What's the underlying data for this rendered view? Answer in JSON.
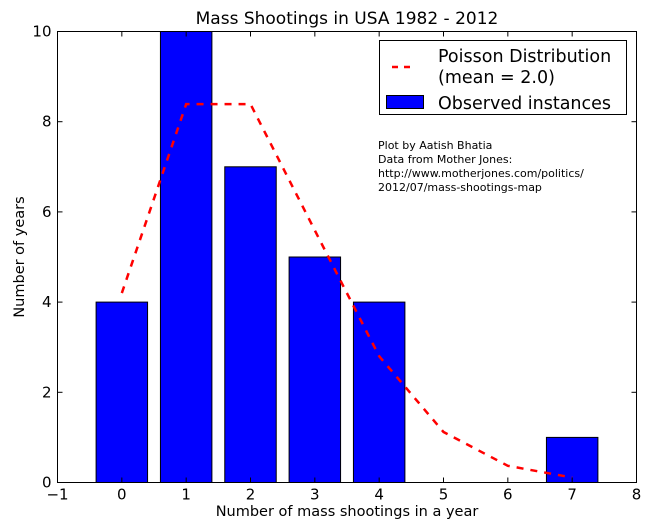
{
  "chart_data": {
    "type": "bar",
    "title": "Mass Shootings in USA 1982 - 2012",
    "xlabel": "Number of mass shootings in a year",
    "ylabel": "Number of years",
    "xlim": [
      -1,
      8
    ],
    "ylim": [
      0,
      10
    ],
    "xticks": [
      -1,
      0,
      1,
      2,
      3,
      4,
      5,
      6,
      7,
      8
    ],
    "xtick_labels": [
      "−1",
      "0",
      "1",
      "2",
      "3",
      "4",
      "5",
      "6",
      "7",
      "8"
    ],
    "yticks": [
      0,
      2,
      4,
      6,
      8,
      10
    ],
    "ytick_labels": [
      "0",
      "2",
      "4",
      "6",
      "8",
      "10"
    ],
    "grid": false,
    "legend_position": "top-right",
    "categories": [
      0,
      1,
      2,
      3,
      4,
      5,
      6,
      7
    ],
    "series": [
      {
        "name": "Observed instances",
        "type": "bar",
        "color": "#0000ff",
        "x": [
          0,
          1,
          2,
          3,
          4,
          5,
          6,
          7
        ],
        "values": [
          4,
          10,
          7,
          5,
          4,
          0,
          0,
          1
        ]
      },
      {
        "name": "Poisson Distribution (mean = 2.0)",
        "type": "line",
        "style": "dashed",
        "color": "#ff0000",
        "x": [
          0,
          1,
          2,
          3,
          4,
          5,
          6,
          7
        ],
        "values": [
          4.2,
          8.39,
          8.39,
          5.59,
          2.8,
          1.12,
          0.37,
          0.11
        ]
      }
    ],
    "legend": [
      {
        "label_line1": "Poisson Distribution",
        "label_line2": "(mean = 2.0)",
        "marker": "dashed-line",
        "color": "#ff0000"
      },
      {
        "label_line1": "Observed instances",
        "marker": "patch",
        "color": "#0000ff"
      }
    ],
    "annotation": [
      "Plot by Aatish Bhatia",
      "Data from Mother Jones:",
      "http://www.motherjones.com/politics/",
      "2012/07/mass-shootings-map"
    ]
  }
}
